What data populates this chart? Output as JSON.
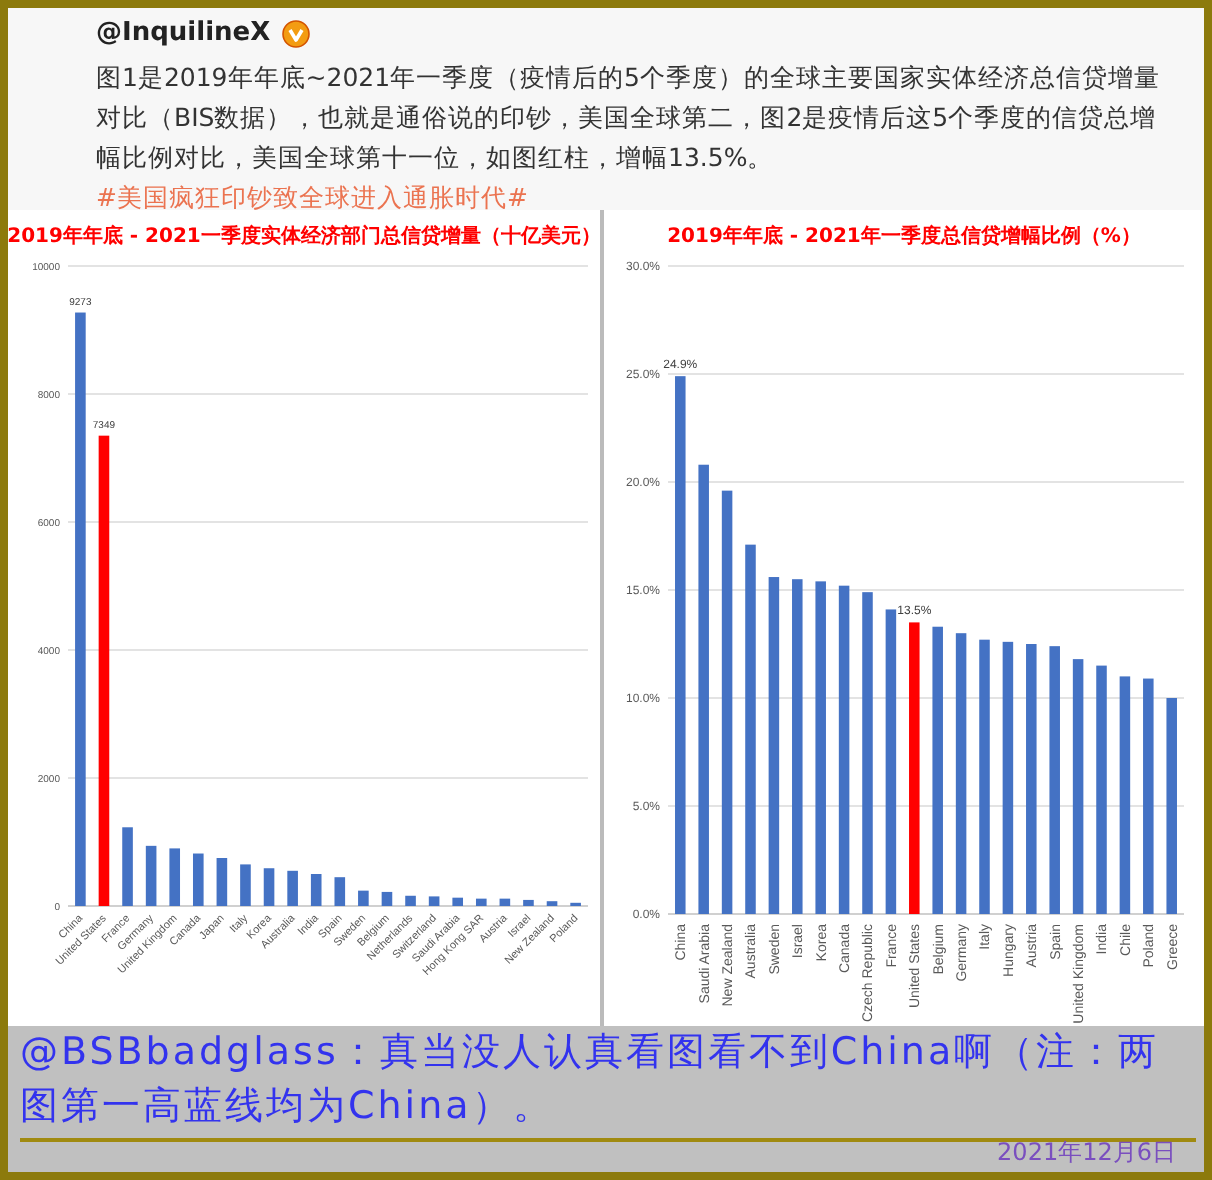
{
  "chart_data": [
    {
      "type": "other",
      "title": "@InquilineX",
      "annotations": [
        "图1是2019年年底~2021年一季度（疫情后的5个季度）的全球主要国家实体经济总信贷增量对比（BIS数据），也就是通俗说的印钞，美国全球第二，图2是疫情后这5个季度的信贷总增幅比例对比，美国全球第十一位，如图红柱，增幅13.5%。",
        "#美国疯狂印钞致全球进入通胀时代#"
      ]
    },
    {
      "type": "bar",
      "title": "2019年年底 - 2021一季度实体经济部门总信贷增量（十亿美元）",
      "categories": [
        "China",
        "United States",
        "France",
        "Germany",
        "United Kingdom",
        "Canada",
        "Japan",
        "Italy",
        "Korea",
        "Australia",
        "India",
        "Spain",
        "Sweden",
        "Belgium",
        "Netherlands",
        "Switzerland",
        "Saudi Arabia",
        "Hong Kong SAR",
        "Austria",
        "Israel",
        "New Zealand",
        "Poland"
      ],
      "values": [
        9273,
        7349,
        1230,
        940,
        900,
        820,
        750,
        650,
        590,
        550,
        500,
        450,
        240,
        220,
        160,
        150,
        130,
        115,
        115,
        95,
        75,
        50
      ],
      "colors": [
        "#4472c4",
        "#ff0000",
        "#4472c4",
        "#4472c4",
        "#4472c4",
        "#4472c4",
        "#4472c4",
        "#4472c4",
        "#4472c4",
        "#4472c4",
        "#4472c4",
        "#4472c4",
        "#4472c4",
        "#4472c4",
        "#4472c4",
        "#4472c4",
        "#4472c4",
        "#4472c4",
        "#4472c4",
        "#4472c4",
        "#4472c4",
        "#4472c4"
      ],
      "value_labels": [
        "9273",
        "7349",
        null,
        null,
        null,
        null,
        null,
        null,
        null,
        null,
        null,
        null,
        null,
        null,
        null,
        null,
        null,
        null,
        null,
        null,
        null,
        null
      ],
      "ylim": [
        0,
        10000
      ],
      "yticks": [
        0,
        2000,
        4000,
        6000,
        8000,
        10000
      ],
      "grid": "y"
    },
    {
      "type": "bar",
      "title": "2019年年底 - 2021年一季度总信贷增幅比例（%）",
      "categories": [
        "China",
        "Saudi Arabia",
        "New Zealand",
        "Australia",
        "Sweden",
        "Israel",
        "Korea",
        "Canada",
        "Czech Republic",
        "France",
        "United States",
        "Belgium",
        "Germany",
        "Italy",
        "Hungary",
        "Austria",
        "Spain",
        "United Kingdom",
        "India",
        "Chile",
        "Poland",
        "Greece"
      ],
      "values": [
        24.9,
        20.8,
        19.6,
        17.1,
        15.6,
        15.5,
        15.4,
        15.2,
        14.9,
        14.1,
        13.5,
        13.3,
        13.0,
        12.7,
        12.6,
        12.5,
        12.4,
        11.8,
        11.5,
        11.0,
        10.9,
        10.0
      ],
      "colors": [
        "#4472c4",
        "#4472c4",
        "#4472c4",
        "#4472c4",
        "#4472c4",
        "#4472c4",
        "#4472c4",
        "#4472c4",
        "#4472c4",
        "#4472c4",
        "#ff0000",
        "#4472c4",
        "#4472c4",
        "#4472c4",
        "#4472c4",
        "#4472c4",
        "#4472c4",
        "#4472c4",
        "#4472c4",
        "#4472c4",
        "#4472c4",
        "#4472c4"
      ],
      "value_labels": [
        "24.9%",
        null,
        null,
        null,
        null,
        null,
        null,
        null,
        null,
        null,
        "13.5%",
        null,
        null,
        null,
        null,
        null,
        null,
        null,
        null,
        null,
        null,
        null
      ],
      "ylim": [
        0,
        30
      ],
      "yticks": [
        {
          "value": 0,
          "label": "0.0%"
        },
        {
          "value": 5,
          "label": "5.0%"
        },
        {
          "value": 10,
          "label": "10.0%"
        },
        {
          "value": 15,
          "label": "15.0%"
        },
        {
          "value": 20,
          "label": "20.0%"
        },
        {
          "value": 25,
          "label": "25.0%"
        },
        {
          "value": 30,
          "label": "30.0%"
        }
      ],
      "grid": "y"
    },
    {
      "type": "other",
      "annotations": [
        "@BSBbadglass：真当没人认真看图看不到China啊（注：两图第一高蓝线均为China）。",
        "2021年12月6日"
      ]
    }
  ]
}
